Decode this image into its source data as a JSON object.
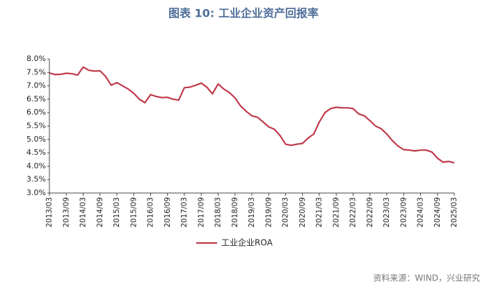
{
  "chart_data": {
    "type": "line",
    "title": "图表 10: 工业企业资产回报率",
    "source": "资料来源：WIND，兴业研究",
    "categories": [
      "2013/03",
      null,
      null,
      "2013/09",
      null,
      null,
      "2014/03",
      null,
      null,
      "2014/09",
      null,
      null,
      "2015/03",
      null,
      null,
      "2015/09",
      null,
      null,
      "2016/03",
      null,
      null,
      "2016/09",
      null,
      null,
      "2017/03",
      null,
      null,
      "2017/09",
      null,
      null,
      "2018/03",
      null,
      null,
      "2018/09",
      null,
      null,
      "2019/03",
      null,
      null,
      "2019/09",
      null,
      null,
      "2020/03",
      null,
      null,
      "2020/09",
      null,
      null,
      "2021/03",
      null,
      null,
      "2021/09",
      null,
      null,
      "2022/03",
      null,
      null,
      "2022/09",
      null,
      null,
      "2023/03",
      null,
      null,
      "2023/09",
      null,
      null,
      "2024/03",
      null,
      null,
      "2024/09",
      null,
      null,
      "2025/03"
    ],
    "series": [
      {
        "name": "工业企业ROA",
        "color": "#c0394b",
        "values": [
          7.48,
          7.42,
          7.43,
          7.47,
          7.45,
          7.4,
          7.7,
          7.58,
          7.55,
          7.56,
          7.35,
          7.02,
          7.12,
          7.0,
          6.88,
          6.72,
          6.5,
          6.37,
          6.67,
          6.6,
          6.56,
          6.57,
          6.5,
          6.47,
          6.93,
          6.95,
          7.02,
          7.1,
          6.95,
          6.7,
          7.07,
          6.88,
          6.75,
          6.55,
          6.25,
          6.05,
          5.88,
          5.83,
          5.65,
          5.47,
          5.38,
          5.15,
          4.82,
          4.78,
          4.82,
          4.85,
          5.05,
          5.2,
          5.65,
          6.0,
          6.15,
          6.2,
          6.18,
          6.18,
          6.15,
          5.95,
          5.88,
          5.7,
          5.5,
          5.4,
          5.2,
          4.95,
          4.75,
          4.62,
          4.6,
          4.57,
          4.6,
          4.6,
          4.53,
          4.3,
          4.15,
          4.18,
          4.13
        ]
      }
    ],
    "ylim": [
      3.0,
      8.0
    ],
    "yticks": [
      {
        "value": 3.0,
        "label": "3.0%"
      },
      {
        "value": 3.5,
        "label": "3.5%"
      },
      {
        "value": 4.0,
        "label": "4.0%"
      },
      {
        "value": 4.5,
        "label": "4.5%"
      },
      {
        "value": 5.0,
        "label": "5.0%"
      },
      {
        "value": 5.5,
        "label": "5.5%"
      },
      {
        "value": 6.0,
        "label": "6.0%"
      },
      {
        "value": 6.5,
        "label": "6.5%"
      },
      {
        "value": 7.0,
        "label": "7.0%"
      },
      {
        "value": 7.5,
        "label": "7.5%"
      },
      {
        "value": 8.0,
        "label": "8.0%"
      }
    ],
    "grid": false,
    "legend": "bottom"
  }
}
